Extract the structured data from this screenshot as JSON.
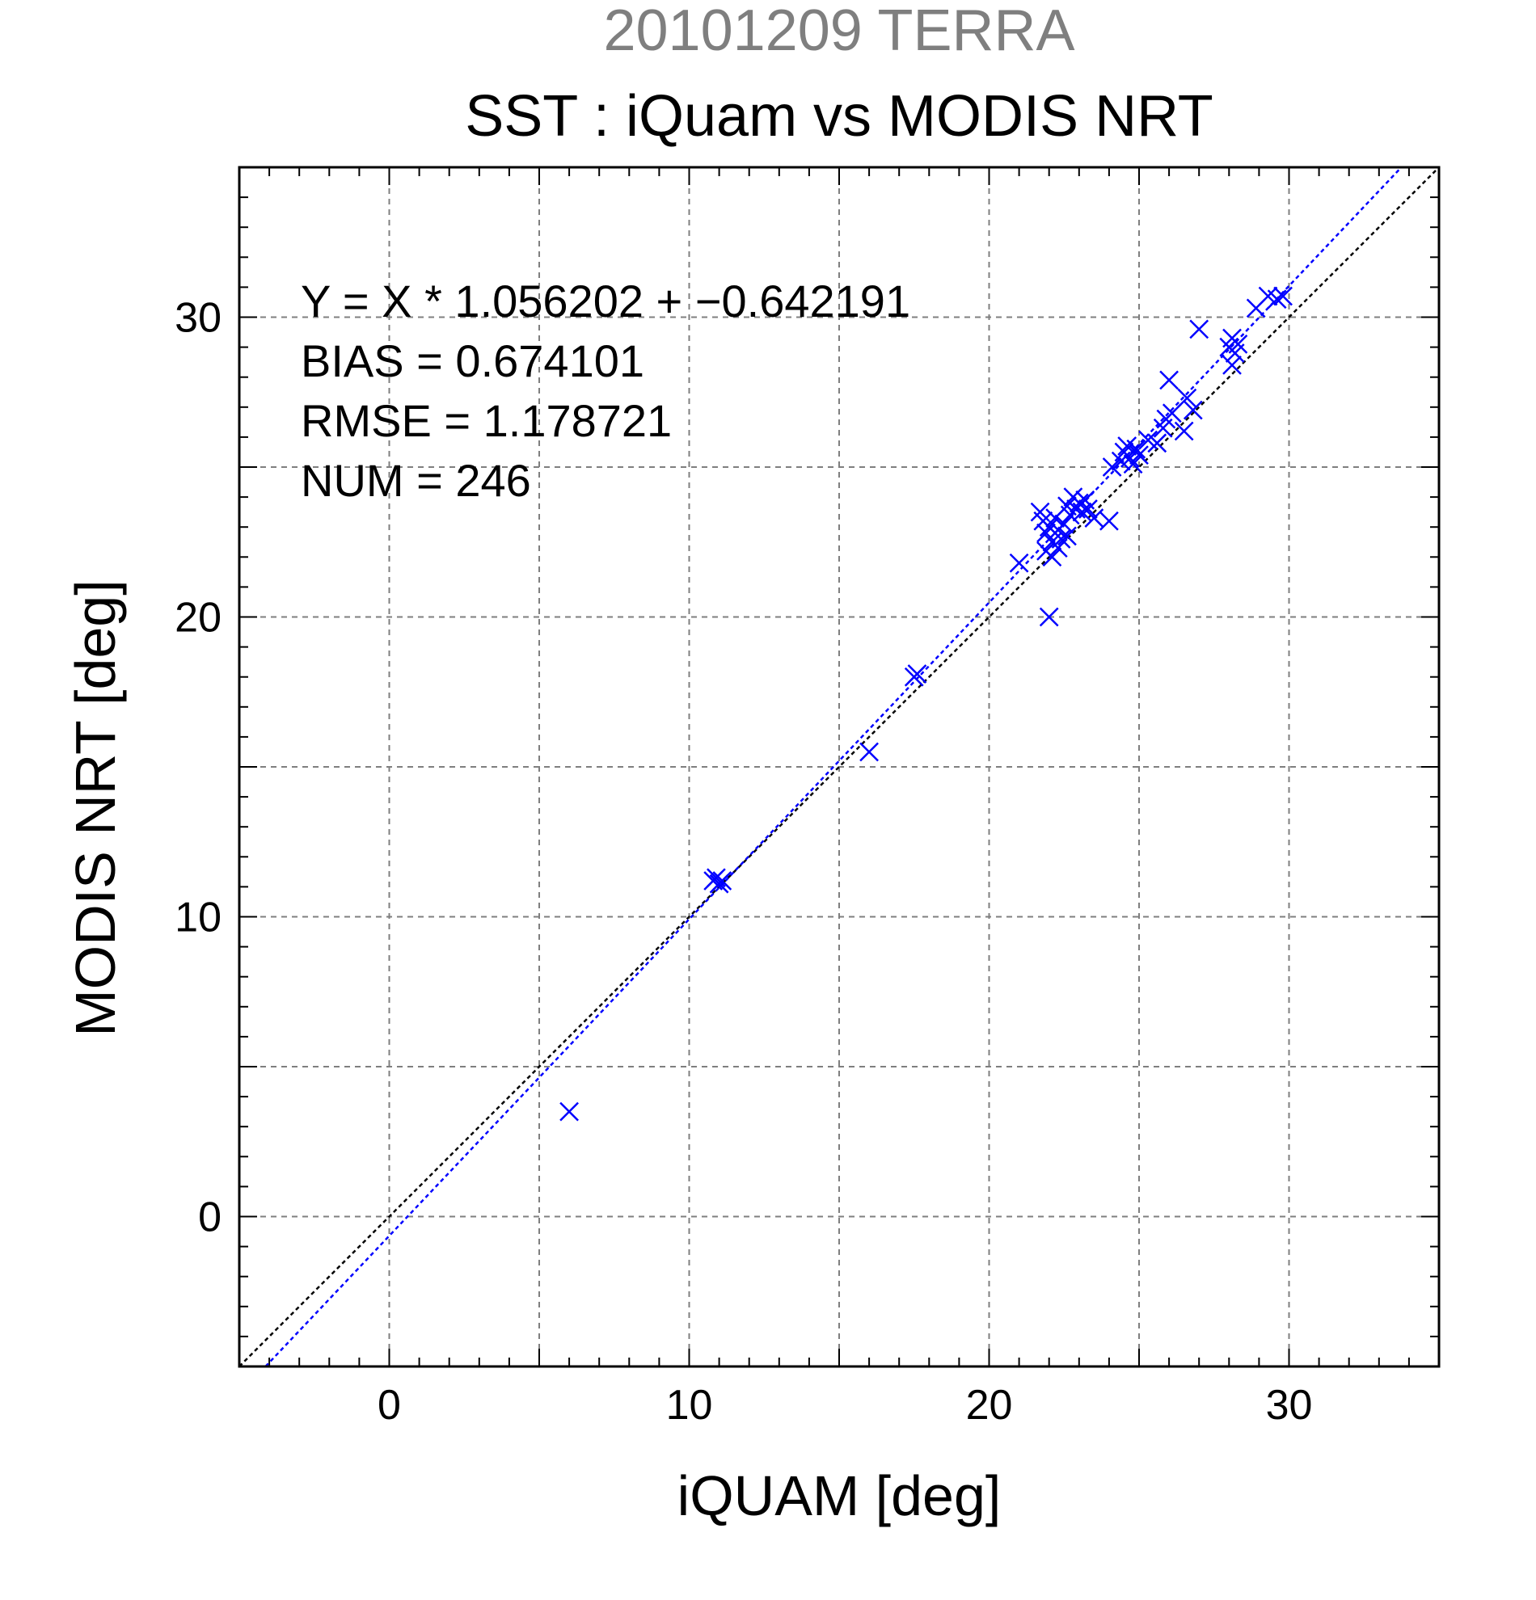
{
  "chart_data": {
    "type": "scatter",
    "title": "20101209 TERRA",
    "subtitle": "SST : iQuam vs MODIS NRT",
    "xlabel": "iQUAM [deg]",
    "ylabel": "MODIS NRT [deg]",
    "xlim": [
      -5,
      35
    ],
    "ylim": [
      -5,
      35
    ],
    "x_ticks": [
      0,
      10,
      20,
      30
    ],
    "y_ticks": [
      0,
      10,
      20,
      30
    ],
    "grid": true,
    "colors": {
      "points": "#0000ff",
      "fit_line": "#0000ff",
      "identity_line": "#000000",
      "grid": "#7f7f7f",
      "title": "#7f7f7f"
    },
    "stats": {
      "equation": "Y = X * 1.056202 + −0.642191",
      "bias": "BIAS = 0.674101",
      "rmse": "RMSE = 1.178721",
      "num": "NUM = 246"
    },
    "fit": {
      "slope": 1.056202,
      "intercept": -0.642191
    },
    "identity": {
      "slope": 1,
      "intercept": 0
    },
    "points": [
      [
        6.0,
        3.5
      ],
      [
        10.8,
        11.2
      ],
      [
        10.9,
        11.3
      ],
      [
        11.0,
        11.1
      ],
      [
        11.1,
        11.2
      ],
      [
        16.0,
        15.5
      ],
      [
        17.5,
        18.0
      ],
      [
        17.6,
        18.1
      ],
      [
        21.0,
        21.8
      ],
      [
        21.7,
        23.5
      ],
      [
        21.8,
        23.2
      ],
      [
        21.9,
        22.8
      ],
      [
        22.0,
        23.0
      ],
      [
        22.0,
        20.0
      ],
      [
        22.1,
        22.5
      ],
      [
        22.2,
        23.3
      ],
      [
        22.3,
        22.9
      ],
      [
        22.4,
        22.6
      ],
      [
        22.5,
        23.1
      ],
      [
        22.6,
        23.7
      ],
      [
        22.7,
        23.4
      ],
      [
        22.8,
        24.0
      ],
      [
        22.9,
        23.6
      ],
      [
        23.0,
        23.8
      ],
      [
        23.1,
        23.5
      ],
      [
        23.2,
        23.9
      ],
      [
        23.3,
        23.6
      ],
      [
        23.5,
        23.3
      ],
      [
        24.0,
        23.2
      ],
      [
        21.9,
        22.2
      ],
      [
        22.1,
        22.0
      ],
      [
        22.3,
        22.3
      ],
      [
        22.6,
        22.7
      ],
      [
        24.1,
        25.0
      ],
      [
        24.4,
        25.2
      ],
      [
        24.5,
        25.5
      ],
      [
        24.6,
        25.7
      ],
      [
        24.7,
        25.3
      ],
      [
        24.8,
        25.1
      ],
      [
        24.9,
        25.6
      ],
      [
        25.0,
        25.4
      ],
      [
        25.3,
        25.9
      ],
      [
        25.6,
        25.8
      ],
      [
        25.8,
        26.3
      ],
      [
        25.9,
        26.6
      ],
      [
        26.0,
        27.9
      ],
      [
        26.1,
        26.8
      ],
      [
        26.5,
        26.2
      ],
      [
        26.6,
        27.3
      ],
      [
        26.8,
        26.9
      ],
      [
        27.0,
        29.6
      ],
      [
        28.0,
        29.0
      ],
      [
        28.1,
        29.3
      ],
      [
        28.2,
        28.8
      ],
      [
        28.3,
        29.1
      ],
      [
        28.1,
        28.4
      ],
      [
        28.9,
        30.3
      ],
      [
        29.3,
        30.7
      ],
      [
        29.6,
        30.6
      ],
      [
        29.8,
        30.7
      ]
    ]
  }
}
